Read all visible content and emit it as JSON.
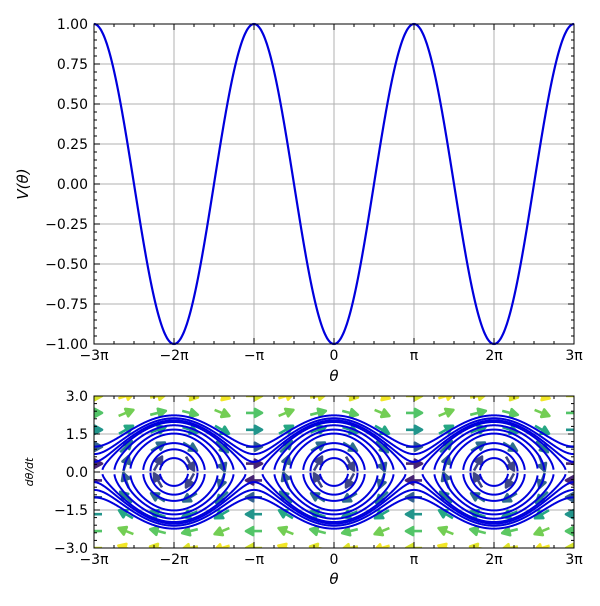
{
  "chart_data": [
    {
      "type": "line",
      "xlabel": "θ",
      "ylabel": "V(θ)",
      "xlim": [
        -9.42478,
        9.42478
      ],
      "ylim": [
        -1.0,
        1.0
      ],
      "x_ticks": [
        -9.42478,
        -6.28319,
        -3.14159,
        0,
        3.14159,
        6.28319,
        9.42478
      ],
      "x_tick_labels": [
        "−3π",
        "−2π",
        "−π",
        "0",
        "π",
        "2π",
        "3π"
      ],
      "y_ticks": [
        -1.0,
        -0.75,
        -0.5,
        -0.25,
        0.0,
        0.25,
        0.5,
        0.75,
        1.0
      ],
      "y_tick_labels": [
        "−1.00",
        "−0.75",
        "−0.50",
        "−0.25",
        "0.00",
        "0.25",
        "0.50",
        "0.75",
        "1.00"
      ],
      "grid": true,
      "series": [
        {
          "function": "-cos(θ)",
          "color": "#0000dd"
        }
      ]
    },
    {
      "type": "phase_portrait",
      "xlabel": "θ",
      "ylabel": "dθ/dt",
      "xlim": [
        -9.42478,
        9.42478
      ],
      "ylim": [
        -3.0,
        3.0
      ],
      "x_ticks": [
        -9.42478,
        -6.28319,
        -3.14159,
        0,
        3.14159,
        6.28319,
        9.42478
      ],
      "x_tick_labels": [
        "−3π",
        "−2π",
        "−π",
        "0",
        "π",
        "2π",
        "3π"
      ],
      "y_ticks": [
        -3.0,
        -1.5,
        0.0,
        1.5,
        3.0
      ],
      "y_tick_labels": [
        "−3.0",
        "−1.5",
        "0.0",
        "1.5",
        "3.0"
      ],
      "grid": true,
      "trajectory_energies": [
        1.5,
        1.25,
        1.08,
        0.95,
        0.7,
        0.4,
        0.15,
        -0.35,
        -0.6,
        -0.85
      ],
      "vector_field": {
        "x_count": 16,
        "y_count": 10,
        "colormap": "viridis"
      },
      "curve_color": "#0000dd"
    }
  ]
}
